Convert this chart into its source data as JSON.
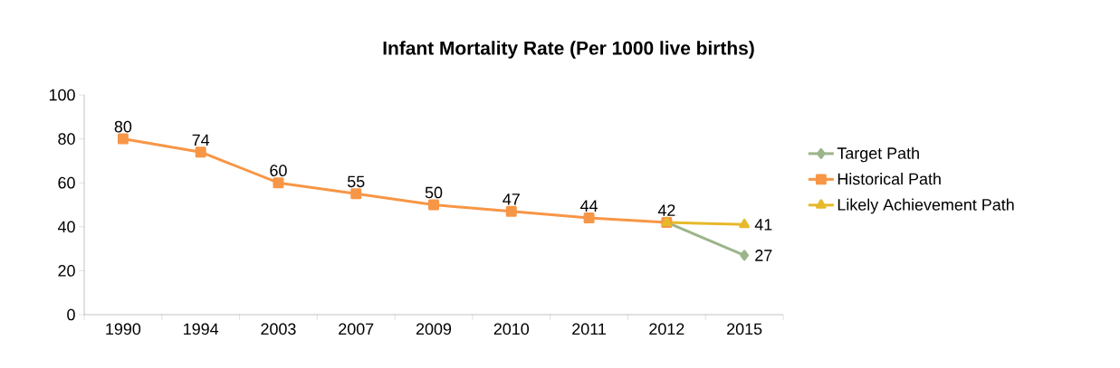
{
  "chart_data": {
    "type": "line",
    "title": "Infant Mortality Rate (Per 1000 live births)",
    "categories": [
      "1990",
      "1994",
      "2003",
      "2007",
      "2009",
      "2010",
      "2011",
      "2012",
      "2015"
    ],
    "series": [
      {
        "name": "Target Path",
        "color": "#9bb58a",
        "marker": "diamond",
        "values": [
          null,
          null,
          null,
          null,
          null,
          null,
          null,
          42,
          27
        ],
        "value_labels": [
          null,
          null,
          null,
          null,
          null,
          null,
          null,
          null,
          "27"
        ]
      },
      {
        "name": "Historical Path",
        "color": "#f79646",
        "marker": "square",
        "values": [
          80,
          74,
          60,
          55,
          50,
          47,
          44,
          42,
          null
        ],
        "value_labels": [
          "80",
          "74",
          "60",
          "55",
          "50",
          "47",
          "44",
          "42",
          null
        ]
      },
      {
        "name": "Likely Achievement Path",
        "color": "#e6b92a",
        "marker": "triangle",
        "values": [
          null,
          null,
          null,
          null,
          null,
          null,
          null,
          42,
          41
        ],
        "value_labels": [
          null,
          null,
          null,
          null,
          null,
          null,
          null,
          null,
          "41"
        ]
      }
    ],
    "ylim": [
      0,
      100
    ],
    "yticks": [
      0,
      20,
      40,
      60,
      80,
      100
    ],
    "grid": false,
    "legend": "right",
    "line_style": "solid"
  }
}
